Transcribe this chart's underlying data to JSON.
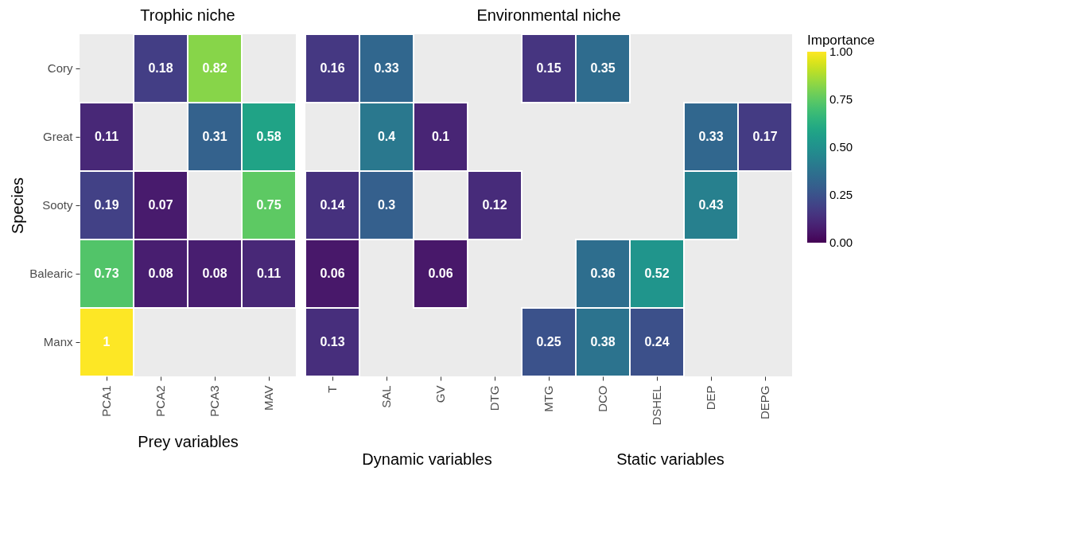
{
  "chart_data": [
    {
      "type": "heatmap",
      "title": "Trophic niche",
      "xlabel": "Prey variables",
      "ylabel": "Species",
      "categories": [
        "PCA1",
        "PCA2",
        "PCA3",
        "MAV"
      ],
      "y_categories": [
        "Cory",
        "Great",
        "Sooty",
        "Balearic",
        "Manx"
      ],
      "cells": [
        [
          null,
          0.18,
          0.82,
          null
        ],
        [
          0.11,
          null,
          0.31,
          0.58
        ],
        [
          0.19,
          0.07,
          null,
          0.75
        ],
        [
          0.73,
          0.08,
          0.08,
          0.11
        ],
        [
          1,
          null,
          null,
          null
        ]
      ],
      "data_labels": true,
      "clabel": "Importance",
      "clim": [
        0,
        1
      ],
      "cticks": [
        {
          "value": 0,
          "label": "0.00"
        },
        {
          "value": 0.25,
          "label": "0.25"
        },
        {
          "value": 0.5,
          "label": "0.50"
        },
        {
          "value": 0.75,
          "label": "0.75"
        },
        {
          "value": 1,
          "label": "1.00"
        }
      ]
    },
    {
      "type": "heatmap",
      "title": "Environmental niche",
      "annotations": [
        "Dynamic variables",
        "Static variables"
      ],
      "categories": [
        "T",
        "SAL",
        "GV",
        "DTG",
        "MTG",
        "DCO",
        "DSHEL",
        "DEP",
        "DEPG"
      ],
      "y_categories": [
        "Cory",
        "Great",
        "Sooty",
        "Balearic",
        "Manx"
      ],
      "cells": [
        [
          0.16,
          0.33,
          null,
          null,
          0.15,
          0.35,
          null,
          null,
          null
        ],
        [
          null,
          0.4,
          0.1,
          null,
          null,
          null,
          null,
          0.33,
          0.17
        ],
        [
          0.14,
          0.3,
          null,
          0.12,
          null,
          null,
          null,
          0.43,
          null
        ],
        [
          0.06,
          null,
          0.06,
          null,
          null,
          0.36,
          0.52,
          null,
          null
        ],
        [
          0.13,
          null,
          null,
          null,
          0.25,
          0.38,
          0.24,
          null,
          null
        ]
      ],
      "data_labels": true,
      "tick_labels": "x"
    }
  ]
}
